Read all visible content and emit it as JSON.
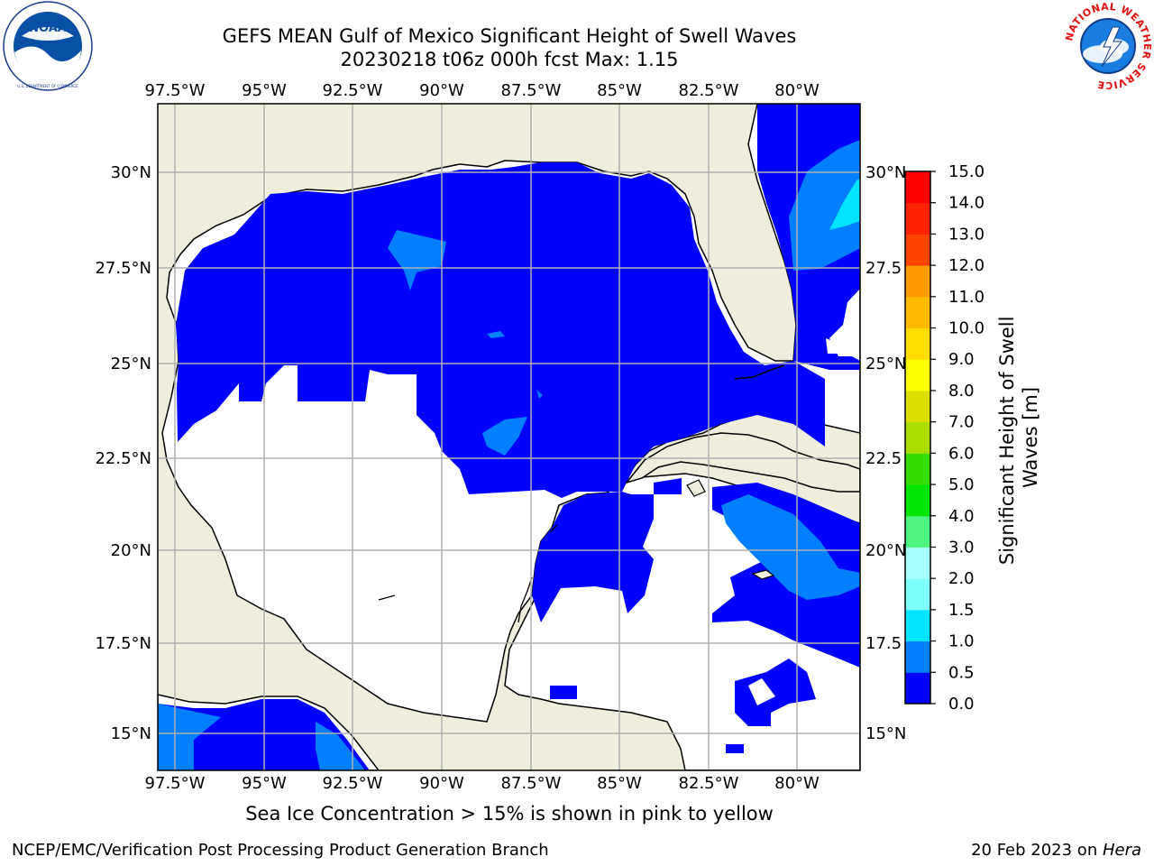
{
  "header": {
    "title_line1": "GEFS MEAN Gulf of Mexico Significant Height of Swell Waves",
    "title_line2": "20230218 t06z 000h fcst   Max: 1.15"
  },
  "logos": {
    "left": {
      "icon": "noaa-logo-icon",
      "text": "NOAA",
      "ring_text": "NATIONAL OCEANIC AND ATMOSPHERIC ADMINISTRATION · U.S. DEPARTMENT OF COMMERCE"
    },
    "right": {
      "icon": "nws-logo-icon",
      "ring_text": "NATIONAL WEATHER SERVICE"
    }
  },
  "map": {
    "lon_labels": [
      "97.5°W",
      "95°W",
      "92.5°W",
      "90°W",
      "87.5°W",
      "85°W",
      "82.5°W",
      "80°W"
    ],
    "lat_labels_left": [
      "30°N",
      "27.5°N",
      "25°N",
      "22.5°N",
      "20°N",
      "17.5°N",
      "15°N"
    ],
    "lat_labels_right": [
      "30°N",
      "27.5",
      "25°N",
      "22.5",
      "20°N",
      "17.5",
      "15°N"
    ],
    "colors": {
      "land": "#efeedc",
      "ocean": "#ffffff",
      "grid": "#b0b0b0",
      "coast": "#000000"
    }
  },
  "colorbar": {
    "label": "Significant Height of Swell Waves [m]",
    "ticks": [
      "15.0",
      "14.0",
      "13.0",
      "12.0",
      "11.0",
      "10.0",
      "9.0",
      "8.0",
      "7.0",
      "6.0",
      "5.0",
      "4.0",
      "3.0",
      "2.0",
      "1.5",
      "1.0",
      "0.5",
      "0.0"
    ],
    "colors_bottom_to_top": [
      "#0000ff",
      "#0080ff",
      "#00e5ff",
      "#40ffff",
      "#80ffff",
      "#a8ffff",
      "#4ef580",
      "#00e600",
      "#33dd00",
      "#77dd00",
      "#aadd00",
      "#dddd00",
      "#ffff00",
      "#ffdd00",
      "#ffbb00",
      "#ff9900",
      "#ff7700",
      "#ff4400",
      "#ff2200",
      "#ff0000"
    ]
  },
  "subtitle": "Sea Ice Concentration > 15% is shown in pink to yellow",
  "footer": {
    "left": "NCEP/EMC/Verification Post Processing Product Generation Branch",
    "right_prefix": "20 Feb 2023 on ",
    "right_host": "Hera"
  }
}
